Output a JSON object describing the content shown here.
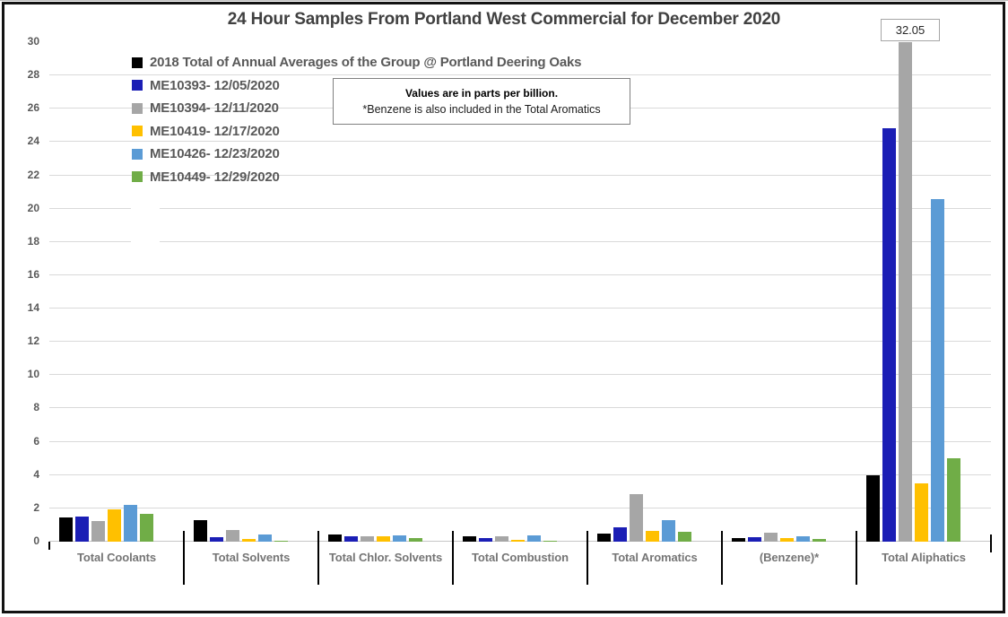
{
  "title": "24 Hour Samples From Portland West Commercial for December 2020",
  "note": {
    "line1": "Values are in parts per billion.",
    "line2": "*Benzene is also included in the Total Aromatics"
  },
  "annotation": {
    "label": "32.05"
  },
  "chart_data": {
    "type": "bar",
    "title": "24 Hour Samples From Portland West Commercial for December 2020",
    "units": "parts per billion",
    "categories": [
      "Total Coolants",
      "Total Solvents",
      "Total Chlor. Solvents",
      "Total Combustion",
      "Total Aromatics",
      "(Benzene)*",
      "Total Aliphatics"
    ],
    "series": [
      {
        "name": "2018 Total of Annual Averages of the Group @ Portland Deering Oaks",
        "color": "#000000",
        "values": [
          1.45,
          1.3,
          0.45,
          0.3,
          0.5,
          0.2,
          4.0
        ]
      },
      {
        "name": "ME10393- 12/05/2020",
        "color": "#1b1eb5",
        "values": [
          1.5,
          0.25,
          0.3,
          0.2,
          0.85,
          0.25,
          24.85
        ]
      },
      {
        "name": "ME10394- 12/11/2020",
        "color": "#a6a6a6",
        "values": [
          1.25,
          0.7,
          0.35,
          0.35,
          2.85,
          0.55,
          32.05
        ]
      },
      {
        "name": "ME10419- 12/17/2020",
        "color": "#ffc000",
        "values": [
          1.95,
          0.15,
          0.3,
          0.1,
          0.65,
          0.2,
          3.5
        ]
      },
      {
        "name": "ME10426- 12/23/2020",
        "color": "#5b9bd5",
        "values": [
          2.2,
          0.45,
          0.4,
          0.4,
          1.3,
          0.3,
          20.55
        ]
      },
      {
        "name": "ME10449- 12/29/2020",
        "color": "#70ad47",
        "values": [
          1.65,
          0.08,
          0.2,
          0.08,
          0.6,
          0.15,
          5.0
        ]
      }
    ],
    "ylim": [
      0,
      30
    ],
    "ytick_step": 2,
    "ytick_labels": [
      "0",
      "2",
      "4",
      "6",
      "8",
      "10",
      "12",
      "14",
      "16",
      "18",
      "20",
      "22",
      "24",
      "26",
      "28",
      "30"
    ],
    "grid": true,
    "legend_position": "top-left",
    "clipped_bar_callout": {
      "series": "ME10394- 12/11/2020",
      "category": "Total Aliphatics",
      "value": 32.05
    }
  }
}
